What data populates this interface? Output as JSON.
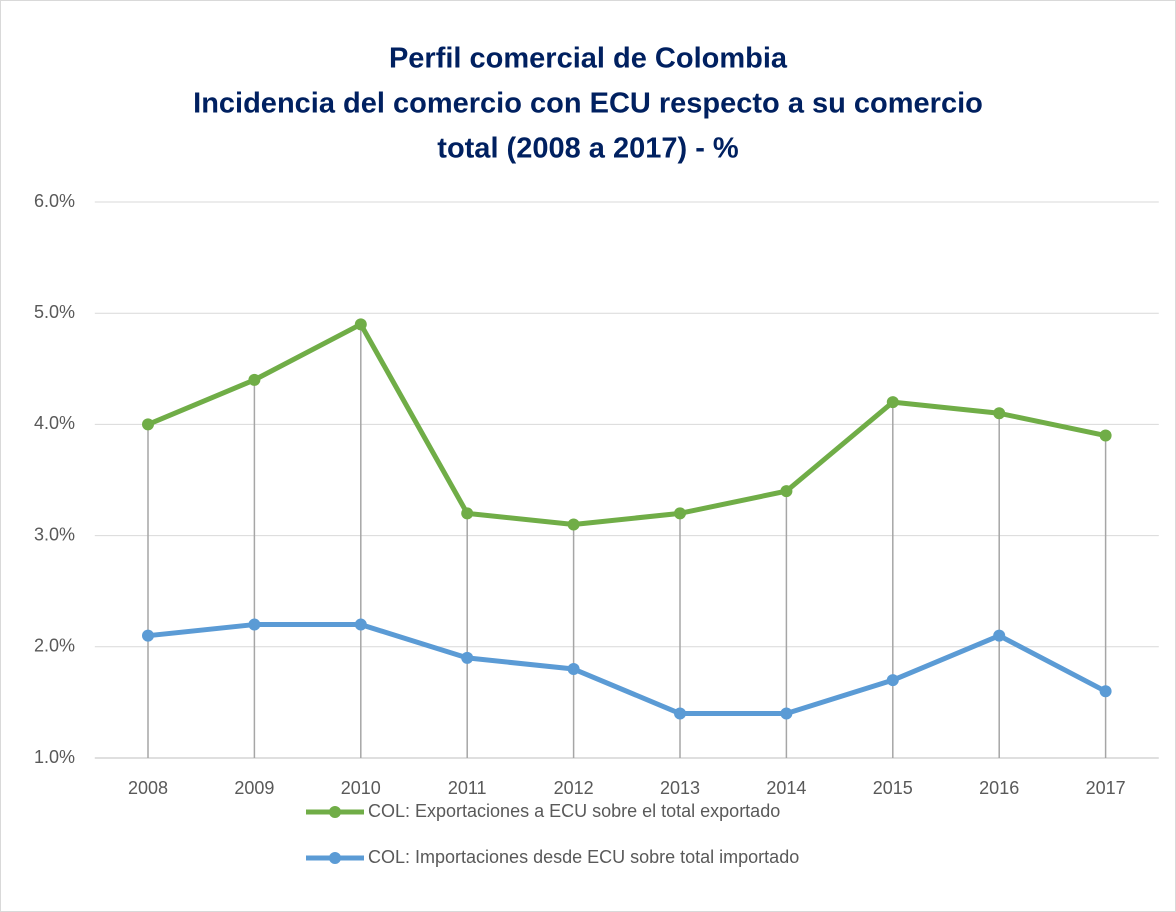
{
  "chart_data": {
    "type": "line",
    "title": [
      "Perfil comercial de Colombia",
      "Incidencia del comercio con ECU respecto a su comercio",
      "total (2008 a 2017) - %"
    ],
    "categories": [
      "2008",
      "2009",
      "2010",
      "2011",
      "2012",
      "2013",
      "2014",
      "2015",
      "2016",
      "2017"
    ],
    "series": [
      {
        "name": "COL: Exportaciones a ECU sobre el total exportado",
        "color": "#70ad47",
        "values": [
          4.0,
          4.4,
          4.9,
          3.2,
          3.1,
          3.2,
          3.4,
          4.2,
          4.1,
          3.9
        ]
      },
      {
        "name": "COL: Importaciones desde ECU sobre total importado",
        "color": "#5b9bd5",
        "values": [
          2.1,
          2.2,
          2.2,
          1.9,
          1.8,
          1.4,
          1.4,
          1.7,
          2.1,
          1.6
        ]
      }
    ],
    "ylim": [
      1,
      6
    ],
    "yticks": [
      {
        "value": 1,
        "label": "1.0%"
      },
      {
        "value": 2,
        "label": "2.0%"
      },
      {
        "value": 3,
        "label": "3.0%"
      },
      {
        "value": 4,
        "label": "4.0%"
      },
      {
        "value": 5,
        "label": "5.0%"
      },
      {
        "value": 6,
        "label": "6.0%"
      }
    ],
    "grid": true,
    "drop_lines": true,
    "legend": "bottom"
  }
}
